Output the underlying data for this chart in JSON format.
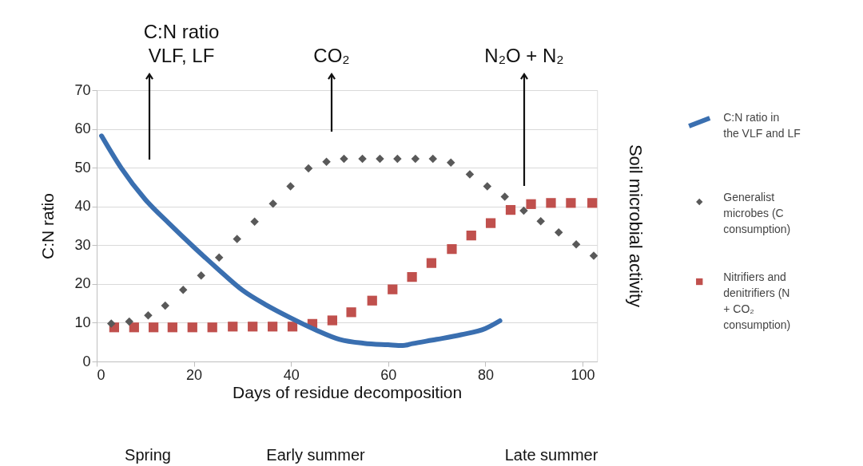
{
  "chart_data": {
    "type": "line",
    "xlabel": "Days of residue decomposition",
    "ylabel": "C:N ratio",
    "y2label": "Soil microbial activity",
    "xlim": [
      0,
      103
    ],
    "xticks": [
      0,
      20,
      40,
      60,
      80,
      100
    ],
    "ylim": [
      0,
      70
    ],
    "yticks": [
      0,
      10,
      20,
      30,
      40,
      50,
      60,
      70
    ],
    "grid": "y",
    "legend": "right",
    "series": [
      {
        "name": "C:N ratio in the VLF and LF",
        "marker": "none",
        "color": "#3a6fb0",
        "x": [
          1,
          5,
          10,
          15,
          20,
          25,
          30,
          35,
          40,
          45,
          50,
          55,
          60,
          63,
          65,
          70,
          75,
          80,
          83
        ],
        "values": [
          58.2,
          50,
          41.8,
          35.5,
          29.5,
          23.8,
          18.4,
          14.5,
          11.2,
          8.2,
          5.7,
          4.7,
          4.3,
          4.1,
          4.6,
          5.7,
          6.9,
          8.5,
          10.5
        ]
      },
      {
        "name": "Generalist microbes (C consumption)",
        "type": "scatter",
        "marker": "diamond",
        "color": "#595959",
        "x": [
          3,
          6.7,
          10.6,
          14.1,
          17.8,
          21.5,
          25.2,
          28.9,
          32.5,
          36.3,
          39.9,
          43.6,
          47.3,
          50.9,
          54.7,
          58.3,
          61.9,
          65.6,
          69.2,
          72.9,
          76.8,
          80.4,
          84,
          87.9,
          91.4,
          95.1,
          98.7,
          102.3
        ],
        "values": [
          9.8,
          10.3,
          11.9,
          14.4,
          18.5,
          22.2,
          26.8,
          31.6,
          36.1,
          40.7,
          45.2,
          49.8,
          51.5,
          52.3,
          52.3,
          52.3,
          52.3,
          52.3,
          52.3,
          51.3,
          48.3,
          45.2,
          42.5,
          38.9,
          36.2,
          33.3,
          30.2,
          27.3
        ]
      },
      {
        "name": "Nitrifiers and denitrifiers (N + CO₂ consumption)",
        "type": "scatter",
        "marker": "square",
        "color": "#c0504d",
        "x": [
          3.6,
          7.7,
          11.7,
          15.6,
          19.7,
          23.8,
          28,
          32.1,
          36.2,
          40.3,
          44.4,
          48.5,
          52.4,
          56.7,
          60.9,
          64.9,
          68.9,
          73.1,
          77.1,
          81.1,
          85.2,
          89.4,
          93.5,
          97.6,
          102
        ],
        "values": [
          8.8,
          8.8,
          8.8,
          8.8,
          8.8,
          8.8,
          9,
          9,
          9,
          9,
          9.7,
          10.6,
          12.7,
          15.7,
          18.6,
          21.8,
          25.4,
          29,
          32.5,
          35.7,
          39.1,
          40.6,
          40.9,
          40.9,
          40.9
        ]
      }
    ],
    "annotations": [
      "C:N ratio\nVLF, LF",
      "CO₂",
      "N₂O + N₂",
      "Spring",
      "Early summer",
      "Late summer"
    ]
  }
}
